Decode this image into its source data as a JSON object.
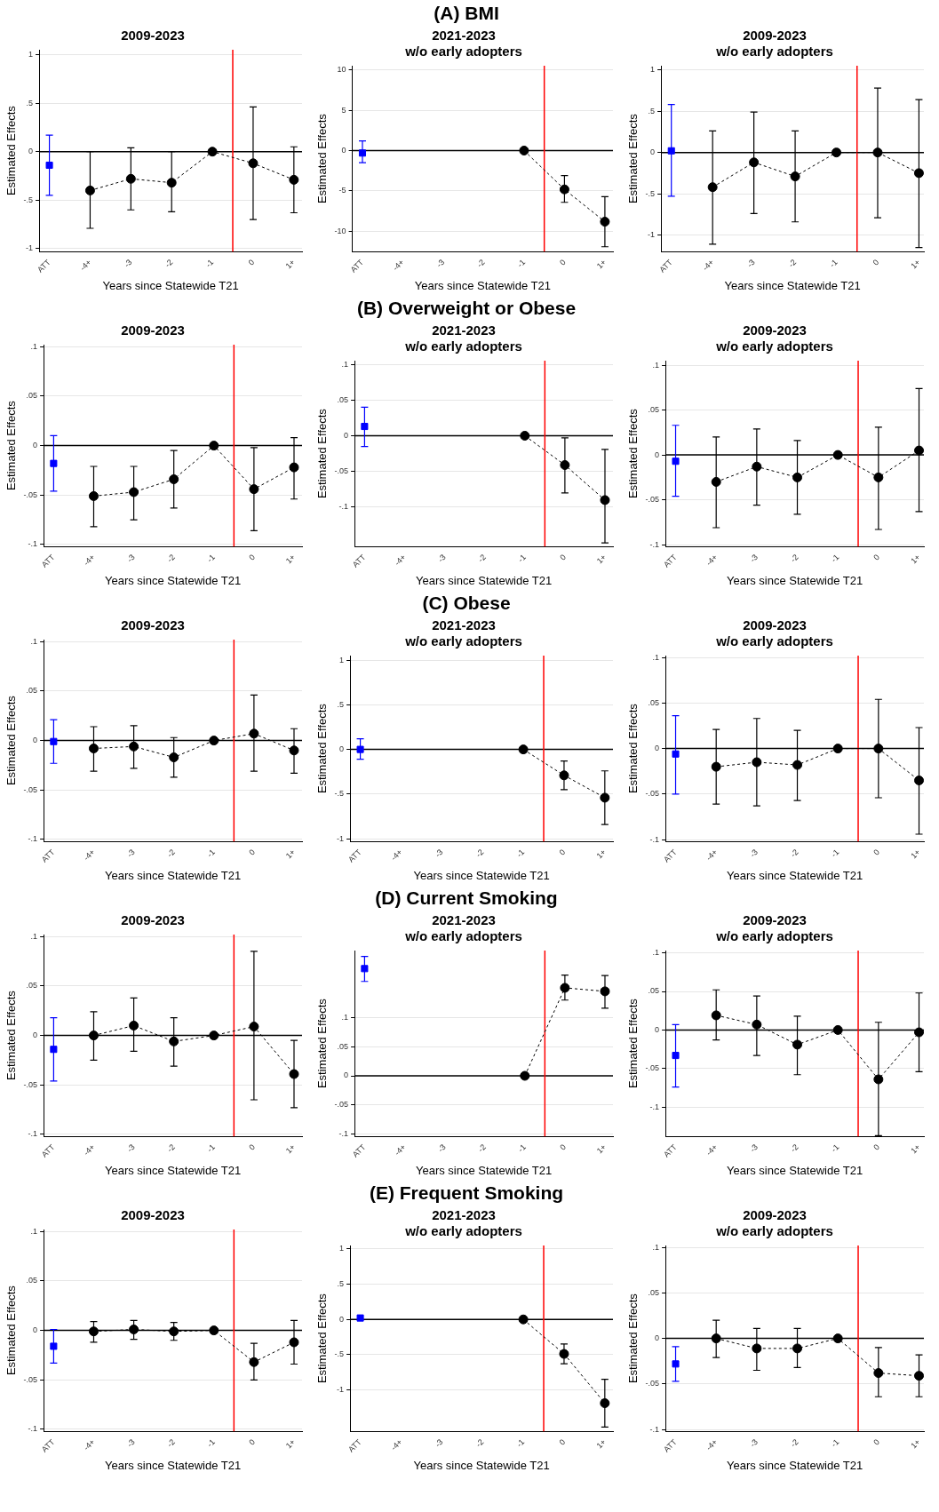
{
  "chart_data": [
    {
      "type": "line",
      "subtitle": "2009-2023",
      "xlabel": "Years since Statewide T21",
      "ylabel": "Estimated Effects",
      "xlim": [
        -5.25,
        1.2
      ],
      "xticks": [
        {
          "value": -5,
          "label": "ATT"
        },
        {
          "value": -4,
          "label": "-4+"
        },
        -3,
        -2,
        -1,
        0,
        {
          "value": 1,
          "label": "1+"
        }
      ],
      "ylim": [
        -1.03,
        1.05
      ],
      "yticks": [
        -1,
        {
          "value": -0.5,
          "label": "-.5"
        },
        0,
        {
          "value": 0.5,
          "label": ".5"
        },
        1
      ],
      "grid": "y",
      "ref_lines": [
        {
          "axis": "y",
          "value": 0,
          "color": "#000000"
        },
        {
          "axis": "x",
          "value": -0.5,
          "color": "#ff0000"
        }
      ],
      "series": [
        {
          "type": "scatter",
          "color": "#0000ff",
          "marker": "square",
          "x": [
            -5
          ],
          "values": [
            -0.14
          ],
          "errors": [
            [
              -0.45,
              0.17
            ]
          ]
        },
        {
          "type": "line",
          "color": "#000000",
          "marker": "circle",
          "line_style": "dashed",
          "x": [
            -4,
            -3,
            -2,
            -1,
            0,
            1
          ],
          "values": [
            -0.4,
            -0.28,
            -0.32,
            0,
            -0.12,
            -0.29
          ],
          "errors": [
            [
              -0.79,
              0
            ],
            [
              -0.6,
              0.04
            ],
            [
              -0.62,
              0
            ],
            null,
            [
              -0.7,
              0.46
            ],
            [
              -0.63,
              0.05
            ]
          ]
        }
      ]
    },
    {
      "type": "line",
      "title": "(A) BMI",
      "subtitle": "2021-2023\nw/o early adopters",
      "xlabel": "Years since Statewide T21",
      "ylabel": "Estimated Effects",
      "xlim": [
        -5.25,
        1.2
      ],
      "xticks": [
        {
          "value": -5,
          "label": "ATT"
        },
        {
          "value": -4,
          "label": "-4+"
        },
        -3,
        -2,
        -1,
        0,
        {
          "value": 1,
          "label": "1+"
        }
      ],
      "ylim": [
        -12.5,
        10.5
      ],
      "yticks": [
        -10,
        -5,
        0,
        5,
        10
      ],
      "grid": "y",
      "ref_lines": [
        {
          "axis": "y",
          "value": 0,
          "color": "#000000"
        },
        {
          "axis": "x",
          "value": -0.5,
          "color": "#ff0000"
        }
      ],
      "series": [
        {
          "type": "scatter",
          "color": "#0000ff",
          "marker": "square",
          "x": [
            -5
          ],
          "values": [
            -0.3
          ],
          "errors": [
            [
              -1.5,
              1.2
            ]
          ]
        },
        {
          "type": "line",
          "color": "#000000",
          "marker": "circle",
          "line_style": "dashed",
          "x": [
            -1,
            0,
            1
          ],
          "values": [
            0,
            -4.8,
            -8.8
          ],
          "errors": [
            null,
            [
              -6.4,
              -3.1
            ],
            [
              -11.9,
              -5.7
            ]
          ]
        }
      ]
    },
    {
      "type": "line",
      "subtitle": "2009-2023\nw/o early adopters",
      "xlabel": "Years since Statewide T21",
      "ylabel": "Estimated Effects",
      "xlim": [
        -5.25,
        1.12
      ],
      "xticks": [
        {
          "value": -5,
          "label": "ATT"
        },
        {
          "value": -4,
          "label": "-4+"
        },
        -3,
        -2,
        -1,
        0,
        {
          "value": 1,
          "label": "1+"
        }
      ],
      "ylim": [
        -1.2,
        1.05
      ],
      "yticks": [
        -1,
        {
          "value": -0.5,
          "label": "-.5"
        },
        0,
        {
          "value": 0.5,
          "label": ".5"
        },
        1
      ],
      "grid": "y",
      "ref_lines": [
        {
          "axis": "y",
          "value": 0,
          "color": "#000000"
        },
        {
          "axis": "x",
          "value": -0.5,
          "color": "#ff0000"
        }
      ],
      "series": [
        {
          "type": "scatter",
          "color": "#0000ff",
          "marker": "square",
          "x": [
            -5
          ],
          "values": [
            0.02
          ],
          "errors": [
            [
              -0.53,
              0.58
            ]
          ]
        },
        {
          "type": "line",
          "color": "#000000",
          "marker": "circle",
          "line_style": "dashed",
          "x": [
            -4,
            -3,
            -2,
            -1,
            0,
            1
          ],
          "values": [
            -0.42,
            -0.12,
            -0.29,
            0,
            0,
            -0.25
          ],
          "errors": [
            [
              -1.11,
              0.26
            ],
            [
              -0.74,
              0.49
            ],
            [
              -0.84,
              0.26
            ],
            null,
            [
              -0.79,
              0.78
            ],
            [
              -1.15,
              0.64
            ]
          ]
        }
      ]
    },
    {
      "type": "line",
      "subtitle": "2009-2023",
      "xlabel": "Years since Statewide T21",
      "ylabel": "Estimated Effects",
      "xlim": [
        -5.25,
        1.2
      ],
      "xticks": [
        {
          "value": -5,
          "label": "ATT"
        },
        {
          "value": -4,
          "label": "-4+"
        },
        -3,
        -2,
        -1,
        0,
        {
          "value": 1,
          "label": "1+"
        }
      ],
      "ylim": [
        -0.102,
        0.102
      ],
      "yticks": [
        {
          "value": -0.1,
          "label": "-.1"
        },
        {
          "value": -0.05,
          "label": "-.05"
        },
        0,
        {
          "value": 0.05,
          "label": ".05"
        },
        {
          "value": 0.1,
          "label": ".1"
        }
      ],
      "grid": "y",
      "ref_lines": [
        {
          "axis": "y",
          "value": 0,
          "color": "#000000"
        },
        {
          "axis": "x",
          "value": -0.5,
          "color": "#ff0000"
        }
      ],
      "series": [
        {
          "type": "scatter",
          "color": "#0000ff",
          "marker": "square",
          "x": [
            -5
          ],
          "values": [
            -0.018
          ],
          "errors": [
            [
              -0.046,
              0.01
            ]
          ]
        },
        {
          "type": "line",
          "color": "#000000",
          "marker": "circle",
          "line_style": "dashed",
          "x": [
            -4,
            -3,
            -2,
            -1,
            0,
            1
          ],
          "values": [
            -0.051,
            -0.047,
            -0.034,
            0,
            -0.044,
            -0.022
          ],
          "errors": [
            [
              -0.082,
              -0.021
            ],
            [
              -0.075,
              -0.021
            ],
            [
              -0.063,
              -0.005
            ],
            null,
            [
              -0.086,
              -0.002
            ],
            [
              -0.054,
              0.008
            ]
          ]
        }
      ]
    },
    {
      "type": "line",
      "title": "(B) Overweight or Obese",
      "subtitle": "2021-2023\nw/o early adopters",
      "xlabel": "Years since Statewide T21",
      "ylabel": "Estimated Effects",
      "xlim": [
        -5.25,
        1.2
      ],
      "xticks": [
        {
          "value": -5,
          "label": "ATT"
        },
        {
          "value": -4,
          "label": "-4+"
        },
        -3,
        -2,
        -1,
        0,
        {
          "value": 1,
          "label": "1+"
        }
      ],
      "ylim": [
        -0.155,
        0.105
      ],
      "yticks": [
        {
          "value": -0.1,
          "label": "-.1"
        },
        {
          "value": -0.05,
          "label": "-.05"
        },
        0,
        {
          "value": 0.05,
          "label": ".05"
        },
        {
          "value": 0.1,
          "label": ".1"
        }
      ],
      "grid": "y",
      "ref_lines": [
        {
          "axis": "y",
          "value": 0,
          "color": "#000000"
        },
        {
          "axis": "x",
          "value": -0.5,
          "color": "#ff0000"
        }
      ],
      "series": [
        {
          "type": "scatter",
          "color": "#0000ff",
          "marker": "square",
          "x": [
            -5
          ],
          "values": [
            0.013
          ],
          "errors": [
            [
              -0.015,
              0.04
            ]
          ]
        },
        {
          "type": "line",
          "color": "#000000",
          "marker": "circle",
          "line_style": "dashed",
          "x": [
            -1,
            0,
            1
          ],
          "values": [
            0,
            -0.041,
            -0.09
          ],
          "errors": [
            null,
            [
              -0.08,
              -0.003
            ],
            [
              -0.15,
              -0.019
            ]
          ]
        }
      ]
    },
    {
      "type": "line",
      "subtitle": "2009-2023\nw/o early adopters",
      "xlabel": "Years since Statewide T21",
      "ylabel": "Estimated Effects",
      "xlim": [
        -5.25,
        1.12
      ],
      "xticks": [
        {
          "value": -5,
          "label": "ATT"
        },
        {
          "value": -4,
          "label": "-4+"
        },
        -3,
        -2,
        -1,
        0,
        {
          "value": 1,
          "label": "1+"
        }
      ],
      "ylim": [
        -0.102,
        0.105
      ],
      "yticks": [
        {
          "value": -0.1,
          "label": "-.1"
        },
        {
          "value": -0.05,
          "label": "-.05"
        },
        0,
        {
          "value": 0.05,
          "label": ".05"
        },
        {
          "value": 0.1,
          "label": ".1"
        }
      ],
      "grid": "y",
      "ref_lines": [
        {
          "axis": "y",
          "value": 0,
          "color": "#000000"
        },
        {
          "axis": "x",
          "value": -0.5,
          "color": "#ff0000"
        }
      ],
      "series": [
        {
          "type": "scatter",
          "color": "#0000ff",
          "marker": "square",
          "x": [
            -5
          ],
          "values": [
            -0.007
          ],
          "errors": [
            [
              -0.046,
              0.033
            ]
          ]
        },
        {
          "type": "line",
          "color": "#000000",
          "marker": "circle",
          "line_style": "dashed",
          "x": [
            -4,
            -3,
            -2,
            -1,
            0,
            1
          ],
          "values": [
            -0.03,
            -0.013,
            -0.025,
            0,
            -0.025,
            0.005
          ],
          "errors": [
            [
              -0.081,
              0.02
            ],
            [
              -0.056,
              0.029
            ],
            [
              -0.066,
              0.016
            ],
            null,
            [
              -0.083,
              0.031
            ],
            [
              -0.063,
              0.074
            ]
          ]
        }
      ]
    },
    {
      "type": "line",
      "subtitle": "2009-2023",
      "xlabel": "Years since Statewide T21",
      "ylabel": "Estimated Effects",
      "xlim": [
        -5.25,
        1.2
      ],
      "xticks": [
        {
          "value": -5,
          "label": "ATT"
        },
        {
          "value": -4,
          "label": "-4+"
        },
        -3,
        -2,
        -1,
        0,
        {
          "value": 1,
          "label": "1+"
        }
      ],
      "ylim": [
        -0.102,
        0.102
      ],
      "yticks": [
        {
          "value": -0.1,
          "label": "-.1"
        },
        {
          "value": -0.05,
          "label": "-.05"
        },
        0,
        {
          "value": 0.05,
          "label": ".05"
        },
        {
          "value": 0.1,
          "label": ".1"
        }
      ],
      "grid": "y",
      "ref_lines": [
        {
          "axis": "y",
          "value": 0,
          "color": "#000000"
        },
        {
          "axis": "x",
          "value": -0.5,
          "color": "#ff0000"
        }
      ],
      "series": [
        {
          "type": "scatter",
          "color": "#0000ff",
          "marker": "square",
          "x": [
            -5
          ],
          "values": [
            -0.001
          ],
          "errors": [
            [
              -0.023,
              0.021
            ]
          ]
        },
        {
          "type": "line",
          "color": "#000000",
          "marker": "circle",
          "line_style": "dashed",
          "x": [
            -4,
            -3,
            -2,
            -1,
            0,
            1
          ],
          "values": [
            -0.008,
            -0.006,
            -0.017,
            0,
            0.007,
            -0.01
          ],
          "errors": [
            [
              -0.031,
              0.014
            ],
            [
              -0.028,
              0.015
            ],
            [
              -0.037,
              0.003
            ],
            null,
            [
              -0.031,
              0.046
            ],
            [
              -0.033,
              0.012
            ]
          ]
        }
      ]
    },
    {
      "type": "line",
      "title": "(C) Obese",
      "subtitle": "2021-2023\nw/o early adopters",
      "xlabel": "Years since Statewide T21",
      "ylabel": "Estimated Effects",
      "xlim": [
        -5.25,
        1.2
      ],
      "xticks": [
        {
          "value": -5,
          "label": "ATT"
        },
        {
          "value": -4,
          "label": "-4+"
        },
        -3,
        -2,
        -1,
        0,
        {
          "value": 1,
          "label": "1+"
        }
      ],
      "ylim": [
        -1.03,
        1.05
      ],
      "yticks": [
        -1,
        {
          "value": -0.5,
          "label": "-.5"
        },
        0,
        {
          "value": 0.5,
          "label": ".5"
        },
        1
      ],
      "grid": "y",
      "ref_lines": [
        {
          "axis": "y",
          "value": 0,
          "color": "#000000"
        },
        {
          "axis": "x",
          "value": -0.5,
          "color": "#ff0000"
        }
      ],
      "series": [
        {
          "type": "scatter",
          "color": "#0000ff",
          "marker": "square",
          "x": [
            -5
          ],
          "values": [
            0
          ],
          "errors": [
            [
              -0.11,
              0.12
            ]
          ]
        },
        {
          "type": "line",
          "color": "#000000",
          "marker": "circle",
          "line_style": "dashed",
          "x": [
            -1,
            0,
            1
          ],
          "values": [
            0,
            -0.29,
            -0.54
          ],
          "errors": [
            null,
            [
              -0.45,
              -0.13
            ],
            [
              -0.84,
              -0.24
            ]
          ]
        }
      ]
    },
    {
      "type": "line",
      "subtitle": "2009-2023\nw/o early adopters",
      "xlabel": "Years since Statewide T21",
      "ylabel": "Estimated Effects",
      "xlim": [
        -5.25,
        1.12
      ],
      "xticks": [
        {
          "value": -5,
          "label": "ATT"
        },
        {
          "value": -4,
          "label": "-4+"
        },
        -3,
        -2,
        -1,
        0,
        {
          "value": 1,
          "label": "1+"
        }
      ],
      "ylim": [
        -0.102,
        0.102
      ],
      "yticks": [
        {
          "value": -0.1,
          "label": "-.1"
        },
        {
          "value": -0.05,
          "label": "-.05"
        },
        0,
        {
          "value": 0.05,
          "label": ".05"
        },
        {
          "value": 0.1,
          "label": ".1"
        }
      ],
      "grid": "y",
      "ref_lines": [
        {
          "axis": "y",
          "value": 0,
          "color": "#000000"
        },
        {
          "axis": "x",
          "value": -0.5,
          "color": "#ff0000"
        }
      ],
      "series": [
        {
          "type": "scatter",
          "color": "#0000ff",
          "marker": "square",
          "x": [
            -5
          ],
          "values": [
            -0.006
          ],
          "errors": [
            [
              -0.05,
              0.036
            ]
          ]
        },
        {
          "type": "line",
          "color": "#000000",
          "marker": "circle",
          "line_style": "dashed",
          "x": [
            -4,
            -3,
            -2,
            -1,
            0,
            1
          ],
          "values": [
            -0.02,
            -0.015,
            -0.018,
            0,
            0,
            -0.035
          ],
          "errors": [
            [
              -0.061,
              0.021
            ],
            [
              -0.063,
              0.033
            ],
            [
              -0.057,
              0.02
            ],
            null,
            [
              -0.054,
              0.054
            ],
            [
              -0.094,
              0.023
            ]
          ]
        }
      ]
    },
    {
      "type": "line",
      "subtitle": "2009-2023",
      "xlabel": "Years since Statewide T21",
      "ylabel": "Estimated Effects",
      "xlim": [
        -5.25,
        1.2
      ],
      "xticks": [
        {
          "value": -5,
          "label": "ATT"
        },
        {
          "value": -4,
          "label": "-4+"
        },
        -3,
        -2,
        -1,
        0,
        {
          "value": 1,
          "label": "1+"
        }
      ],
      "ylim": [
        -0.102,
        0.102
      ],
      "yticks": [
        {
          "value": -0.1,
          "label": "-.1"
        },
        {
          "value": -0.05,
          "label": "-.05"
        },
        0,
        {
          "value": 0.05,
          "label": ".05"
        },
        {
          "value": 0.1,
          "label": ".1"
        }
      ],
      "grid": "y",
      "ref_lines": [
        {
          "axis": "y",
          "value": 0,
          "color": "#000000"
        },
        {
          "axis": "x",
          "value": -0.5,
          "color": "#ff0000"
        }
      ],
      "series": [
        {
          "type": "scatter",
          "color": "#0000ff",
          "marker": "square",
          "x": [
            -5
          ],
          "values": [
            -0.014
          ],
          "errors": [
            [
              -0.046,
              0.018
            ]
          ]
        },
        {
          "type": "line",
          "color": "#000000",
          "marker": "circle",
          "line_style": "dashed",
          "x": [
            -4,
            -3,
            -2,
            -1,
            0,
            1
          ],
          "values": [
            0,
            0.01,
            -0.006,
            0,
            0.009,
            -0.039
          ],
          "errors": [
            [
              -0.025,
              0.024
            ],
            [
              -0.016,
              0.038
            ],
            [
              -0.031,
              0.018
            ],
            null,
            [
              -0.065,
              0.085
            ],
            [
              -0.073,
              -0.005
            ]
          ]
        }
      ]
    },
    {
      "type": "line",
      "title": "(D) Current Smoking",
      "subtitle": "2021-2023\nw/o early adopters",
      "xlabel": "Years since Statewide T21",
      "ylabel": "Estimated Effects",
      "xlim": [
        -5.25,
        1.2
      ],
      "xticks": [
        {
          "value": -5,
          "label": "ATT"
        },
        {
          "value": -4,
          "label": "-4+"
        },
        -3,
        -2,
        -1,
        0,
        {
          "value": 1,
          "label": "1+"
        }
      ],
      "ylim": [
        -0.104,
        0.215
      ],
      "yticks": [
        {
          "value": -0.1,
          "label": "-.1"
        },
        {
          "value": -0.05,
          "label": "-.05"
        },
        0,
        {
          "value": 0.05,
          "label": ".05"
        },
        {
          "value": 0.1,
          "label": ".1"
        }
      ],
      "grid": "y",
      "ref_lines": [
        {
          "axis": "y",
          "value": 0,
          "color": "#000000"
        },
        {
          "axis": "x",
          "value": -0.5,
          "color": "#ff0000"
        }
      ],
      "series": [
        {
          "type": "scatter",
          "color": "#0000ff",
          "marker": "square",
          "x": [
            -5
          ],
          "values": [
            0.184
          ],
          "errors": [
            [
              0.162,
              0.205
            ]
          ]
        },
        {
          "type": "line",
          "color": "#000000",
          "marker": "circle",
          "line_style": "dashed",
          "x": [
            -1,
            0,
            1
          ],
          "values": [
            0,
            0.151,
            0.145
          ],
          "errors": [
            null,
            [
              0.13,
              0.173
            ],
            [
              0.116,
              0.172
            ]
          ]
        }
      ]
    },
    {
      "type": "line",
      "subtitle": "2009-2023\nw/o early adopters",
      "xlabel": "Years since Statewide T21",
      "ylabel": "Estimated Effects",
      "xlim": [
        -5.25,
        1.12
      ],
      "xticks": [
        {
          "value": -5,
          "label": "ATT"
        },
        {
          "value": -4,
          "label": "-4+"
        },
        -3,
        -2,
        -1,
        0,
        {
          "value": 1,
          "label": "1+"
        }
      ],
      "ylim": [
        -0.138,
        0.103
      ],
      "yticks": [
        {
          "value": -0.1,
          "label": "-.1"
        },
        {
          "value": -0.05,
          "label": "-.05"
        },
        0,
        {
          "value": 0.05,
          "label": ".05"
        },
        {
          "value": 0.1,
          "label": ".1"
        }
      ],
      "grid": "y",
      "ref_lines": [
        {
          "axis": "y",
          "value": 0,
          "color": "#000000"
        },
        {
          "axis": "x",
          "value": -0.5,
          "color": "#ff0000"
        }
      ],
      "series": [
        {
          "type": "scatter",
          "color": "#0000ff",
          "marker": "square",
          "x": [
            -5
          ],
          "values": [
            -0.033
          ],
          "errors": [
            [
              -0.074,
              0.007
            ]
          ]
        },
        {
          "type": "line",
          "color": "#000000",
          "marker": "circle",
          "line_style": "dashed",
          "x": [
            -4,
            -3,
            -2,
            -1,
            0,
            1
          ],
          "values": [
            0.019,
            0.007,
            -0.019,
            0,
            -0.064,
            -0.003
          ],
          "errors": [
            [
              -0.013,
              0.052
            ],
            [
              -0.033,
              0.044
            ],
            [
              -0.058,
              0.018
            ],
            null,
            [
              -0.137,
              0.01
            ],
            [
              -0.054,
              0.048
            ]
          ]
        }
      ]
    },
    {
      "type": "line",
      "subtitle": "2009-2023",
      "xlabel": "Years since Statewide T21",
      "ylabel": "Estimated Effects",
      "xlim": [
        -5.25,
        1.2
      ],
      "xticks": [
        {
          "value": -5,
          "label": "ATT"
        },
        {
          "value": -4,
          "label": "-4+"
        },
        -3,
        -2,
        -1,
        0,
        {
          "value": 1,
          "label": "1+"
        }
      ],
      "ylim": [
        -0.102,
        0.102
      ],
      "yticks": [
        {
          "value": -0.1,
          "label": "-.1"
        },
        {
          "value": -0.05,
          "label": "-.05"
        },
        0,
        {
          "value": 0.05,
          "label": ".05"
        },
        {
          "value": 0.1,
          "label": ".1"
        }
      ],
      "grid": "y",
      "ref_lines": [
        {
          "axis": "y",
          "value": 0,
          "color": "#000000"
        },
        {
          "axis": "x",
          "value": -0.5,
          "color": "#ff0000"
        }
      ],
      "series": [
        {
          "type": "scatter",
          "color": "#0000ff",
          "marker": "square",
          "x": [
            -5
          ],
          "values": [
            -0.016
          ],
          "errors": [
            [
              -0.033,
              0.001
            ]
          ]
        },
        {
          "type": "line",
          "color": "#000000",
          "marker": "circle",
          "line_style": "dashed",
          "x": [
            -4,
            -3,
            -2,
            -1,
            0,
            1
          ],
          "values": [
            -0.001,
            0.001,
            -0.001,
            0,
            -0.032,
            -0.012
          ],
          "errors": [
            [
              -0.012,
              0.009
            ],
            [
              -0.009,
              0.01
            ],
            [
              -0.01,
              0.008
            ],
            null,
            [
              -0.05,
              -0.013
            ],
            [
              -0.034,
              0.01
            ]
          ]
        }
      ]
    },
    {
      "type": "line",
      "title": "(E) Frequent Smoking",
      "subtitle": "2021-2023\nw/o early adopters",
      "xlabel": "Years since Statewide T21",
      "ylabel": "Estimated Effects",
      "xlim": [
        -5.25,
        1.2
      ],
      "xticks": [
        {
          "value": -5,
          "label": "ATT"
        },
        {
          "value": -4,
          "label": "-4+"
        },
        -3,
        -2,
        -1,
        0,
        {
          "value": 1,
          "label": "1+"
        }
      ],
      "ylim": [
        -1.59,
        1.05
      ],
      "yticks": [
        -1,
        {
          "value": -0.5,
          "label": "-.5"
        },
        0,
        {
          "value": 0.5,
          "label": ".5"
        },
        1
      ],
      "grid": "y",
      "ref_lines": [
        {
          "axis": "y",
          "value": 0,
          "color": "#000000"
        },
        {
          "axis": "x",
          "value": -0.5,
          "color": "#ff0000"
        }
      ],
      "series": [
        {
          "type": "scatter",
          "color": "#0000ff",
          "marker": "square",
          "x": [
            -5
          ],
          "values": [
            0.02
          ]
        },
        {
          "type": "line",
          "color": "#000000",
          "marker": "circle",
          "line_style": "dashed",
          "x": [
            -1,
            0,
            1
          ],
          "values": [
            0,
            -0.49,
            -1.19
          ],
          "errors": [
            null,
            [
              -0.63,
              -0.35
            ],
            [
              -1.53,
              -0.85
            ]
          ]
        }
      ]
    },
    {
      "type": "line",
      "subtitle": "2009-2023\nw/o early adopters",
      "xlabel": "Years since Statewide T21",
      "ylabel": "Estimated Effects",
      "xlim": [
        -5.25,
        1.12
      ],
      "xticks": [
        {
          "value": -5,
          "label": "ATT"
        },
        {
          "value": -4,
          "label": "-4+"
        },
        -3,
        -2,
        -1,
        0,
        {
          "value": 1,
          "label": "1+"
        }
      ],
      "ylim": [
        -0.102,
        0.102
      ],
      "yticks": [
        {
          "value": -0.1,
          "label": "-.1"
        },
        {
          "value": -0.05,
          "label": "-.05"
        },
        0,
        {
          "value": 0.05,
          "label": ".05"
        },
        {
          "value": 0.1,
          "label": ".1"
        }
      ],
      "grid": "y",
      "ref_lines": [
        {
          "axis": "y",
          "value": 0,
          "color": "#000000"
        },
        {
          "axis": "x",
          "value": -0.5,
          "color": "#ff0000"
        }
      ],
      "series": [
        {
          "type": "scatter",
          "color": "#0000ff",
          "marker": "square",
          "x": [
            -5
          ],
          "values": [
            -0.028
          ],
          "errors": [
            [
              -0.047,
              -0.009
            ]
          ]
        },
        {
          "type": "line",
          "color": "#000000",
          "marker": "circle",
          "line_style": "dashed",
          "x": [
            -4,
            -3,
            -2,
            -1,
            0,
            1
          ],
          "values": [
            0,
            -0.011,
            -0.011,
            0,
            -0.038,
            -0.041
          ],
          "errors": [
            [
              -0.021,
              0.02
            ],
            [
              -0.035,
              0.011
            ],
            [
              -0.032,
              0.011
            ],
            null,
            [
              -0.064,
              -0.01
            ],
            [
              -0.064,
              -0.018
            ]
          ]
        }
      ]
    }
  ]
}
